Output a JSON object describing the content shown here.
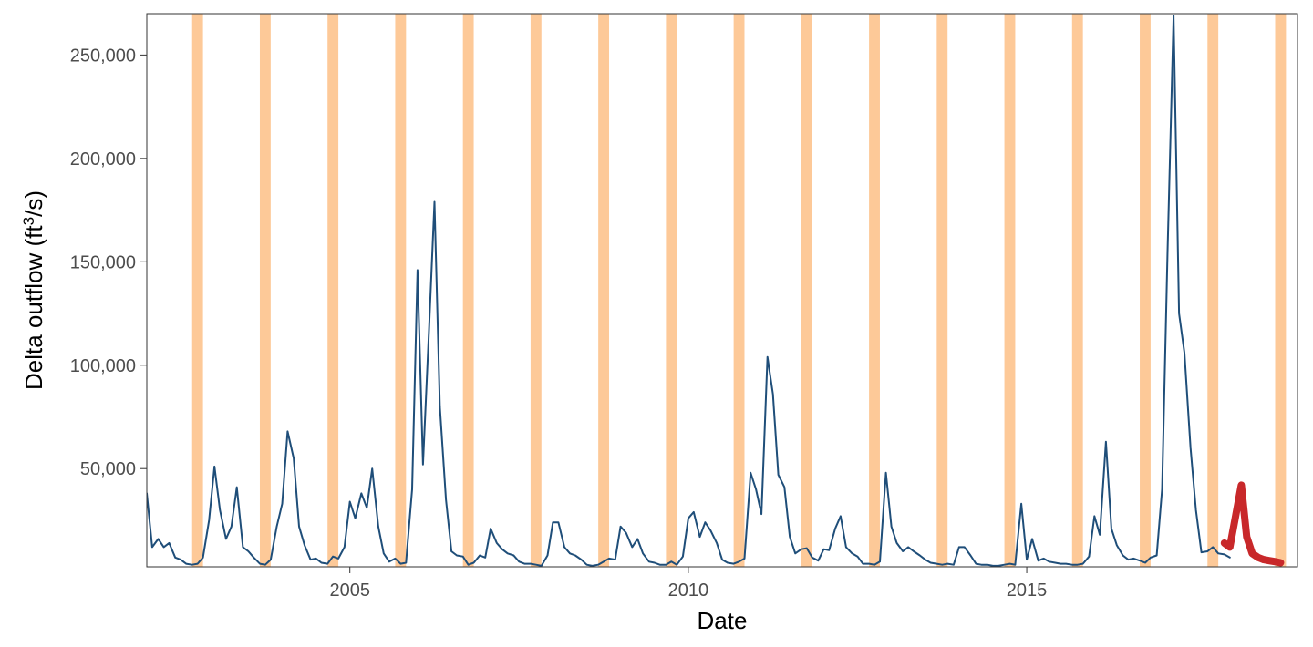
{
  "chart_data": {
    "type": "line",
    "xlabel": "Date",
    "ylabel": {
      "prefix": "Delta outflow (ft",
      "superscript": "3",
      "suffix": "/s)"
    },
    "xlim": [
      2002.0,
      2019.0
    ],
    "ylim": [
      2500,
      270000
    ],
    "x_ticks": [
      2005,
      2010,
      2015
    ],
    "x_tick_labels": [
      "2005",
      "2010",
      "2015"
    ],
    "y_ticks": [
      50000,
      100000,
      150000,
      200000,
      250000
    ],
    "y_tick_labels": [
      "50,000",
      "100,000",
      "150,000",
      "200,000",
      "250,000"
    ],
    "grid": false,
    "colors": {
      "main_series": "#1f4e79",
      "highlight_series": "#c8282a",
      "shaded_band": "#fdc998"
    },
    "shaded_bands": [
      [
        2002.67,
        2002.83
      ],
      [
        2003.67,
        2003.83
      ],
      [
        2004.67,
        2004.83
      ],
      [
        2005.67,
        2005.83
      ],
      [
        2006.67,
        2006.83
      ],
      [
        2007.67,
        2007.83
      ],
      [
        2008.67,
        2008.83
      ],
      [
        2009.67,
        2009.83
      ],
      [
        2010.67,
        2010.83
      ],
      [
        2011.67,
        2011.83
      ],
      [
        2012.67,
        2012.83
      ],
      [
        2013.67,
        2013.83
      ],
      [
        2014.67,
        2014.83
      ],
      [
        2015.67,
        2015.83
      ],
      [
        2016.67,
        2016.83
      ],
      [
        2017.67,
        2017.83
      ],
      [
        2018.67,
        2018.83
      ]
    ],
    "series": [
      {
        "x": [
          2002.0,
          2002.08,
          2002.17,
          2002.25,
          2002.33,
          2002.42,
          2002.5,
          2002.58,
          2002.67,
          2002.75,
          2002.83,
          2002.92,
          2003.0,
          2003.08,
          2003.17,
          2003.25,
          2003.33,
          2003.42,
          2003.5,
          2003.58,
          2003.67,
          2003.75,
          2003.83,
          2003.92,
          2004.0,
          2004.08,
          2004.17,
          2004.25,
          2004.33,
          2004.42,
          2004.5,
          2004.58,
          2004.67,
          2004.75,
          2004.83,
          2004.92,
          2005.0,
          2005.08,
          2005.17,
          2005.25,
          2005.33,
          2005.42,
          2005.5,
          2005.58,
          2005.67,
          2005.75,
          2005.83,
          2005.92,
          2006.0,
          2006.08,
          2006.17,
          2006.25,
          2006.33,
          2006.42,
          2006.5,
          2006.58,
          2006.67,
          2006.75,
          2006.83,
          2006.92,
          2007.0,
          2007.08,
          2007.17,
          2007.25,
          2007.33,
          2007.42,
          2007.5,
          2007.58,
          2007.67,
          2007.75,
          2007.83,
          2007.92,
          2008.0,
          2008.08,
          2008.17,
          2008.25,
          2008.33,
          2008.42,
          2008.5,
          2008.58,
          2008.67,
          2008.75,
          2008.83,
          2008.92,
          2009.0,
          2009.08,
          2009.17,
          2009.25,
          2009.33,
          2009.42,
          2009.5,
          2009.58,
          2009.67,
          2009.75,
          2009.83,
          2009.92,
          2010.0,
          2010.08,
          2010.17,
          2010.25,
          2010.33,
          2010.42,
          2010.5,
          2010.58,
          2010.67,
          2010.75,
          2010.83,
          2010.92,
          2011.0,
          2011.08,
          2011.17,
          2011.25,
          2011.33,
          2011.42,
          2011.5,
          2011.58,
          2011.67,
          2011.75,
          2011.83,
          2011.92,
          2012.0,
          2012.08,
          2012.17,
          2012.25,
          2012.33,
          2012.42,
          2012.5,
          2012.58,
          2012.67,
          2012.75,
          2012.83,
          2012.92,
          2013.0,
          2013.08,
          2013.17,
          2013.25,
          2013.33,
          2013.42,
          2013.5,
          2013.58,
          2013.67,
          2013.75,
          2013.83,
          2013.92,
          2014.0,
          2014.08,
          2014.17,
          2014.25,
          2014.33,
          2014.42,
          2014.5,
          2014.58,
          2014.67,
          2014.75,
          2014.83,
          2014.92,
          2015.0,
          2015.08,
          2015.17,
          2015.25,
          2015.33,
          2015.42,
          2015.5,
          2015.58,
          2015.67,
          2015.75,
          2015.83,
          2015.92,
          2016.0,
          2016.08,
          2016.17,
          2016.25,
          2016.33,
          2016.42,
          2016.5,
          2016.58,
          2016.67,
          2016.75,
          2016.83,
          2016.92,
          2017.0,
          2017.08,
          2017.17,
          2017.25,
          2017.33,
          2017.42,
          2017.5,
          2017.58,
          2017.67,
          2017.75,
          2017.83,
          2017.92,
          2018.0
        ],
        "y": [
          38000,
          12000,
          16000,
          12000,
          14000,
          7000,
          6000,
          4000,
          3500,
          4000,
          7000,
          25000,
          51000,
          30000,
          16000,
          22000,
          41000,
          12000,
          10000,
          7000,
          4000,
          3500,
          6000,
          22000,
          33000,
          68000,
          55000,
          22000,
          13000,
          6000,
          6500,
          4500,
          4000,
          7500,
          6500,
          12000,
          34000,
          26000,
          38000,
          31000,
          50000,
          22000,
          9000,
          5000,
          6500,
          4000,
          4500,
          40000,
          146000,
          52000,
          118000,
          179000,
          80000,
          35000,
          10000,
          8000,
          7500,
          3500,
          4500,
          8000,
          7000,
          21000,
          14000,
          11000,
          9000,
          8000,
          5000,
          4000,
          4000,
          3500,
          3000,
          8000,
          24000,
          24000,
          12000,
          9000,
          8000,
          6000,
          3500,
          3000,
          3500,
          5000,
          6500,
          6000,
          22000,
          19000,
          12000,
          16000,
          9000,
          5000,
          4500,
          3500,
          3500,
          5000,
          3500,
          7500,
          26000,
          29000,
          17000,
          24000,
          20000,
          14000,
          6000,
          4500,
          4000,
          5000,
          6500,
          48000,
          40000,
          28000,
          104000,
          86000,
          47000,
          41000,
          17000,
          9000,
          11000,
          11500,
          7000,
          5500,
          11000,
          10500,
          21000,
          27000,
          12000,
          9000,
          7500,
          4000,
          4000,
          3500,
          5000,
          48000,
          22000,
          14000,
          10000,
          12000,
          10000,
          8000,
          6000,
          4500,
          4000,
          3500,
          4000,
          3500,
          12000,
          12000,
          8000,
          4000,
          3500,
          3500,
          3000,
          3000,
          3500,
          4000,
          3500,
          33000,
          6000,
          16000,
          5500,
          6500,
          5000,
          4500,
          4000,
          4000,
          3500,
          3500,
          4000,
          7500,
          27000,
          18000,
          63000,
          21000,
          13000,
          8000,
          6000,
          6500,
          5500,
          4500,
          7000,
          8000,
          40000,
          155000,
          269000,
          125000,
          106000,
          60000,
          30000,
          9500,
          10000,
          12000,
          9000,
          8500,
          7000
        ]
      },
      {
        "x": [
          2017.92,
          2018.0,
          2018.08,
          2018.17,
          2018.25,
          2018.33,
          2018.42,
          2018.5,
          2018.58,
          2018.67,
          2018.75
        ],
        "y": [
          14000,
          12000,
          26000,
          42000,
          17000,
          9000,
          7000,
          6000,
          5500,
          5000,
          4500
        ]
      }
    ]
  }
}
